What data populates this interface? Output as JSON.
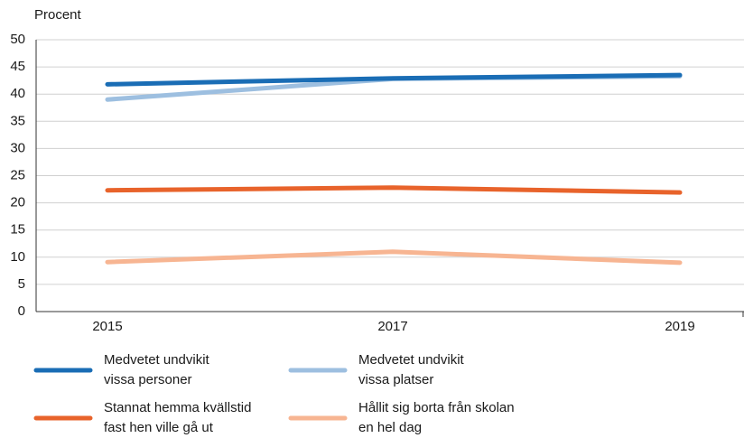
{
  "chart_data": {
    "type": "line",
    "ylabel": "Procent",
    "categories": [
      "2015",
      "2017",
      "2019"
    ],
    "series": [
      {
        "name": "Medvetet undvikit\nvissa personer",
        "color": "#1a6db5",
        "values": [
          41.8,
          42.9,
          43.5
        ]
      },
      {
        "name": "Medvetet undvikit\nvissa platser",
        "color": "#9dbfe0",
        "values": [
          39.0,
          42.8,
          43.3
        ]
      },
      {
        "name": "Stannat hemma kvällstid\nfast hen ville gå ut",
        "color": "#e8632b",
        "values": [
          22.3,
          22.8,
          21.9
        ]
      },
      {
        "name": "Hållit sig borta från skolan\nen hel dag",
        "color": "#f7b592",
        "values": [
          9.1,
          11.0,
          9.0
        ]
      }
    ],
    "ylim": [
      0,
      50
    ],
    "yticks": [
      0,
      5,
      10,
      15,
      20,
      25,
      30,
      35,
      40,
      45,
      50
    ],
    "grid": true
  }
}
